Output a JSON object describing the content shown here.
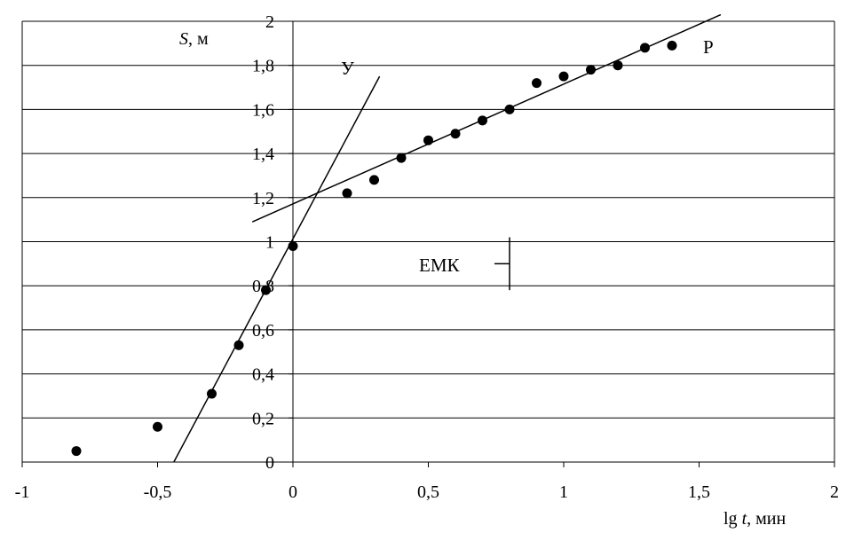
{
  "chart_data": {
    "type": "scatter",
    "xlim": [
      -1,
      2
    ],
    "ylim": [
      0,
      2
    ],
    "x_ticks": [
      "-1",
      "-0,5",
      "0",
      "0,5",
      "1",
      "1,5",
      "2"
    ],
    "x_tick_values": [
      -1,
      -0.5,
      0,
      0.5,
      1,
      1.5,
      2
    ],
    "y_ticks": [
      "0",
      "0,2",
      "0,4",
      "0,6",
      "0,8",
      "1",
      "1,2",
      "1,4",
      "1,6",
      "1,8",
      "2"
    ],
    "y_tick_values": [
      0,
      0.2,
      0.4,
      0.6,
      0.8,
      1,
      1.2,
      1.4,
      1.6,
      1.8,
      2
    ],
    "grid": true,
    "grid_axis": "y",
    "ylabel_var": "S",
    "ylabel_unit": ", м",
    "xlabel_prefix": "lg ",
    "xlabel_var": "t",
    "xlabel_unit": ", мин",
    "points": [
      {
        "x": -0.8,
        "y": 0.05
      },
      {
        "x": -0.5,
        "y": 0.16
      },
      {
        "x": -0.3,
        "y": 0.31
      },
      {
        "x": -0.2,
        "y": 0.53
      },
      {
        "x": -0.1,
        "y": 0.78
      },
      {
        "x": 0.0,
        "y": 0.98
      },
      {
        "x": 0.2,
        "y": 1.22
      },
      {
        "x": 0.3,
        "y": 1.28
      },
      {
        "x": 0.4,
        "y": 1.38
      },
      {
        "x": 0.5,
        "y": 1.46
      },
      {
        "x": 0.6,
        "y": 1.49
      },
      {
        "x": 0.7,
        "y": 1.55
      },
      {
        "x": 0.8,
        "y": 1.6
      },
      {
        "x": 0.9,
        "y": 1.72
      },
      {
        "x": 1.0,
        "y": 1.75
      },
      {
        "x": 1.1,
        "y": 1.78
      },
      {
        "x": 1.2,
        "y": 1.8
      },
      {
        "x": 1.3,
        "y": 1.88
      },
      {
        "x": 1.4,
        "y": 1.89
      }
    ],
    "lines": [
      {
        "label": "У",
        "x1": -0.44,
        "y1": 0.0,
        "x2": 0.32,
        "y2": 1.75
      },
      {
        "label": "Р",
        "x1": -0.15,
        "y1": 1.09,
        "x2": 1.58,
        "y2": 2.03
      }
    ],
    "annotation": {
      "text": "ЕМК",
      "x": 0.8,
      "y_top": 1.02,
      "y_bottom": 0.78,
      "y_tick": 0.9
    }
  }
}
